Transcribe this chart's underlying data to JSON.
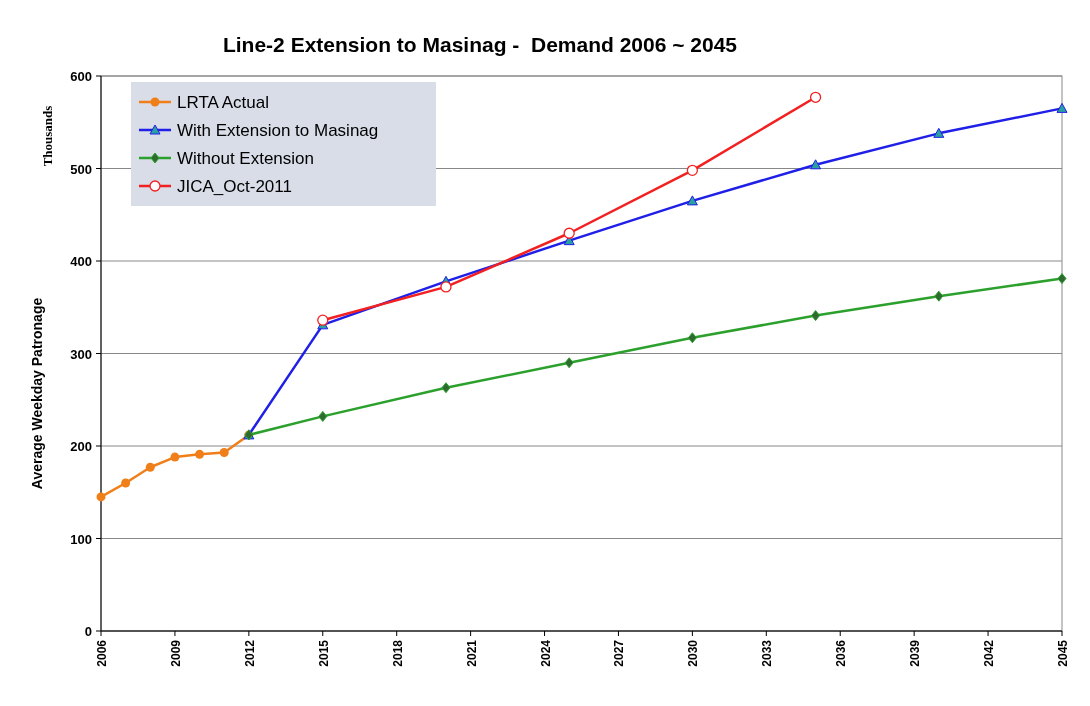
{
  "chart_data": {
    "type": "line",
    "title": "Line-2 Extension to Masinag -  Demand 2006 ~ 2045",
    "ylabel": "Average Weekday Patronage",
    "annotations": [
      "Thousands"
    ],
    "series": [
      {
        "name": "LRTA Actual",
        "color": "#f07f1a",
        "marker": "circle",
        "x": [
          2006,
          2007,
          2008,
          2009,
          2010,
          2011,
          2012
        ],
        "values": [
          145,
          160,
          177,
          188,
          191,
          193,
          212
        ]
      },
      {
        "name": "With Extension to Masinag",
        "color": "#1f1fe8",
        "marker": "triangle",
        "x": [
          2012,
          2015,
          2020,
          2025,
          2030,
          2035,
          2040,
          2045
        ],
        "values": [
          212,
          331,
          378,
          422,
          465,
          504,
          538,
          565
        ]
      },
      {
        "name": "Without Extension",
        "color": "#2ca02c",
        "marker": "diamond",
        "x": [
          2012,
          2015,
          2020,
          2025,
          2030,
          2035,
          2040,
          2045
        ],
        "values": [
          212,
          232,
          263,
          290,
          317,
          341,
          362,
          381
        ]
      },
      {
        "name": "JICA_Oct-2011",
        "color": "#f22020",
        "marker": "circle-open",
        "x": [
          2015,
          2020,
          2025,
          2030,
          2035
        ],
        "values": [
          336,
          372,
          430,
          498,
          577
        ]
      }
    ],
    "xlim": [
      2006,
      2045
    ],
    "xticks": [
      2006,
      2009,
      2012,
      2015,
      2018,
      2021,
      2024,
      2027,
      2030,
      2033,
      2036,
      2039,
      2042,
      2045
    ],
    "ylim": [
      0,
      600
    ],
    "yticks": [
      0,
      100,
      200,
      300,
      400,
      500,
      600
    ],
    "grid": "y",
    "legend": "top left",
    "line_style": "solid"
  }
}
